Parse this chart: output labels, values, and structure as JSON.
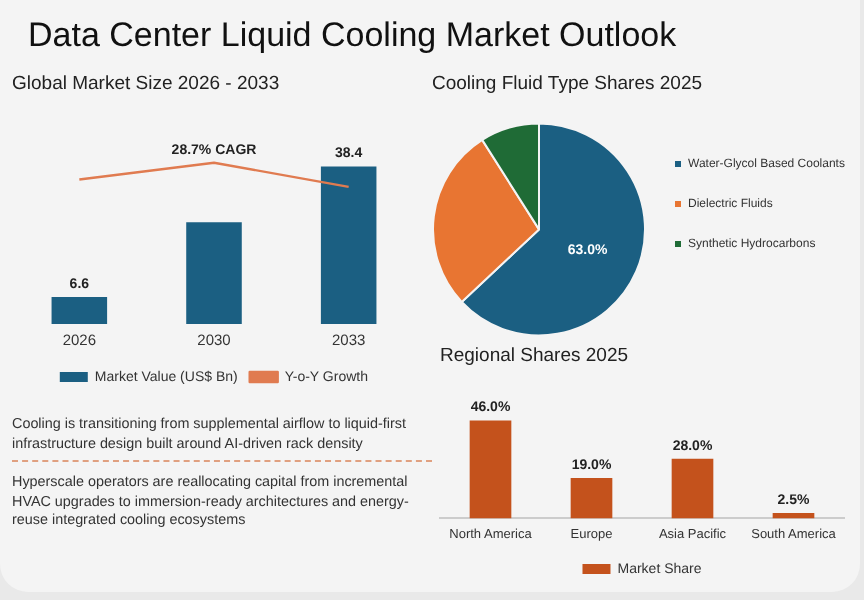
{
  "chart_data": [
    {
      "type": "bar",
      "title": "Data Center Liquid Cooling Market Outlook",
      "subtitle": "Global Market Size 2026 - 2033",
      "categories": [
        "2026",
        "2030",
        "2033"
      ],
      "series": [
        {
          "name": "Market Value (US$ Bn)",
          "color": "#1b5f82",
          "values": [
            6.6,
            24.8,
            38.4
          ],
          "value_labels": [
            "6.6",
            null,
            "38.4"
          ]
        },
        {
          "name": "Y-o-Y Growth",
          "type": "line",
          "color": "#e07b50",
          "values": [
            35.2,
            39.3,
            33.4
          ]
        }
      ],
      "annotations": [
        {
          "text": "28.7% CAGR",
          "x": "2030",
          "y": 39.3
        },
        "Cooling is transitioning from supplemental airflow to liquid-first infrastructure design built around AI-driven rack density",
        "Hyperscale operators are reallocating capital from incremental HVAC upgrades to immersion-ready architectures and energy-reuse integrated cooling ecosystems"
      ],
      "legend": "bottom",
      "tick_labels": "x",
      "marker": "none"
    },
    {
      "type": "pie",
      "title": "Cooling Fluid Type Shares 2025",
      "categories": [
        "Water-Glycol Based Coolants",
        "Dielectric Fluids",
        "Synthetic Hydrocarbons"
      ],
      "values": [
        63,
        28,
        9
      ],
      "colors": [
        "#1b5f82",
        "#e87532",
        "#1f6b36"
      ],
      "value_labels": [
        "63.0%",
        null,
        null
      ],
      "legend": "right"
    },
    {
      "type": "bar",
      "title": "Regional Shares 2025",
      "categories": [
        "North America",
        "Europe",
        "Asia Pacific",
        "South America"
      ],
      "series": [
        {
          "name": "Market Share",
          "color": "#c4521c",
          "values": [
            46.0,
            19.0,
            28.0,
            2.5
          ],
          "value_labels": [
            "46.0%",
            "19.0%",
            "28.0%",
            "2.5%"
          ]
        }
      ],
      "legend": "bottom",
      "tick_labels": "x"
    }
  ]
}
